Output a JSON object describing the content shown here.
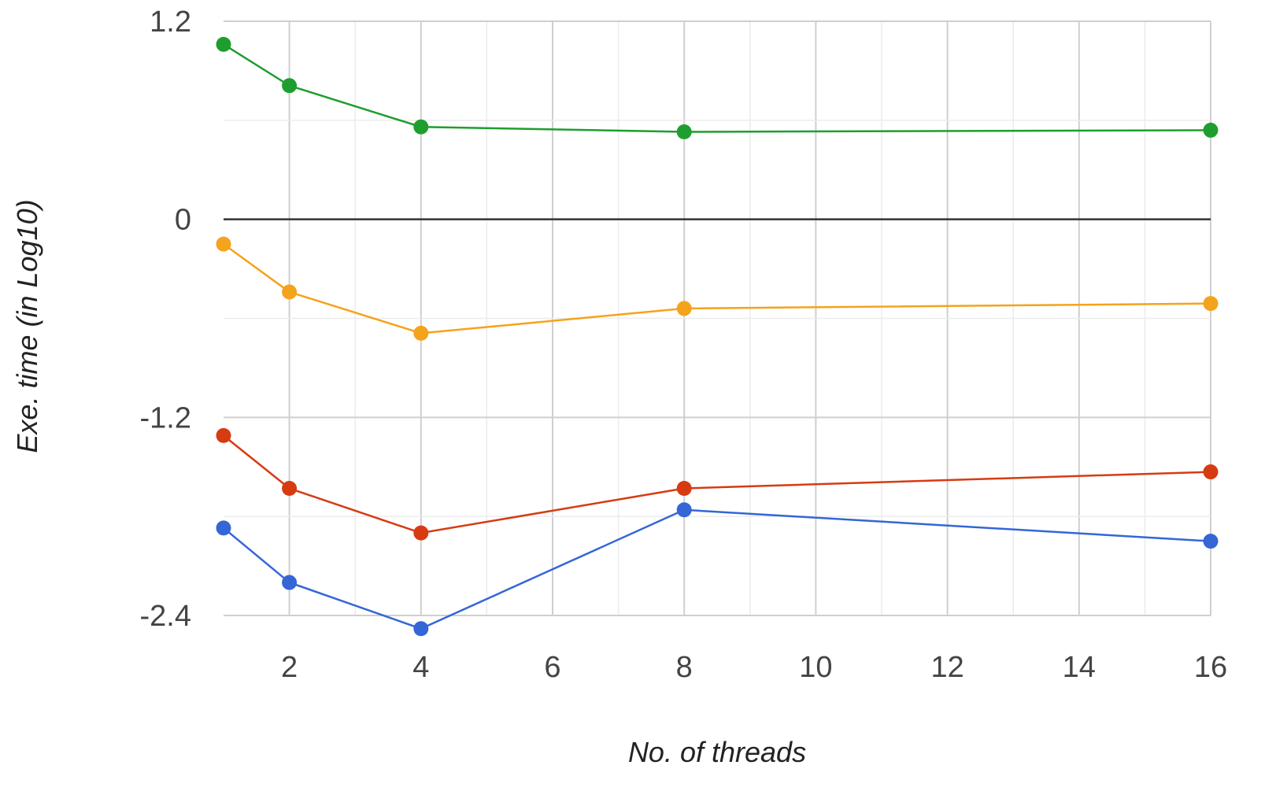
{
  "chart_data": {
    "type": "line",
    "title": "",
    "xlabel": "No. of threads",
    "ylabel": "Exe. time (in Log10)",
    "xlim": [
      1,
      16
    ],
    "ylim": [
      -2.4,
      1.2
    ],
    "x_ticks": [
      2,
      4,
      6,
      8,
      10,
      12,
      14,
      16
    ],
    "y_ticks": [
      -2.4,
      -1.2,
      0,
      1.2
    ],
    "x_tick_labels": [
      "2",
      "4",
      "6",
      "8",
      "10",
      "12",
      "14",
      "16"
    ],
    "y_tick_labels": [
      "-2.4",
      "-1.2",
      "0",
      "1.2"
    ],
    "grid": true,
    "legend": "none",
    "x": [
      1,
      2,
      4,
      8,
      16
    ],
    "series": [
      {
        "color": "#1e9e2f",
        "values": [
          1.06,
          0.81,
          0.56,
          0.53,
          0.54
        ]
      },
      {
        "color": "#f4a31c",
        "values": [
          -0.15,
          -0.44,
          -0.69,
          -0.54,
          -0.51
        ]
      },
      {
        "color": "#d63b12",
        "values": [
          -1.31,
          -1.63,
          -1.9,
          -1.63,
          -1.53
        ]
      },
      {
        "color": "#3566d6",
        "values": [
          -1.87,
          -2.2,
          -2.48,
          -1.76,
          -1.95
        ]
      }
    ]
  }
}
